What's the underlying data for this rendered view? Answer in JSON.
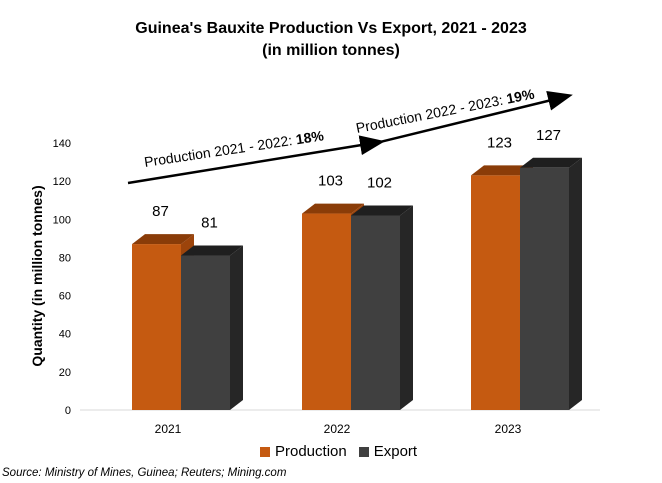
{
  "title_line1": "Guinea's Bauxite Production Vs Export, 2021 - 2023",
  "title_line2": "(in million tonnes)",
  "source": "Source: Ministry of Mines, Guinea; Reuters; Mining.com",
  "colors": {
    "production": "#c55a11",
    "export": "#404040"
  },
  "chart_data": {
    "type": "bar",
    "categories": [
      "2021",
      "2022",
      "2023"
    ],
    "series": [
      {
        "name": "Production",
        "values": [
          87,
          103,
          123
        ]
      },
      {
        "name": "Export",
        "values": [
          81,
          102,
          127
        ]
      }
    ],
    "data_labels": {
      "Production": [
        "87",
        "103",
        "123"
      ],
      "Export": [
        "81",
        "102",
        "127"
      ]
    },
    "ylabel": "Quantity (in million tonnes)",
    "ylim": [
      0,
      140
    ],
    "yticks": [
      0,
      20,
      40,
      60,
      80,
      100,
      120,
      140
    ],
    "legend": "bottom",
    "annotations": [
      {
        "text_prefix": "Production 2021 - 2022: ",
        "text_bold": "18%"
      },
      {
        "text_prefix": "Production 2022 - 2023: ",
        "text_bold": "19%"
      }
    ]
  }
}
